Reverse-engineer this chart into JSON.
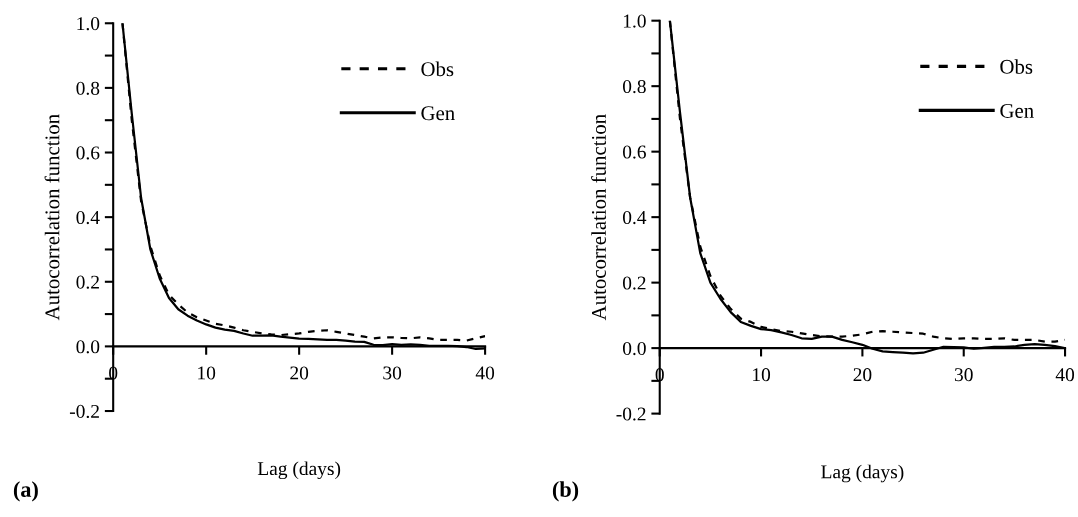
{
  "chart_data": [
    {
      "type": "line",
      "xlabel": "Lag (days)",
      "ylabel": "Autocorrelation function",
      "annotations": [
        "(a)"
      ],
      "legend": "top right",
      "grid": false,
      "x": [
        1,
        2,
        3,
        4,
        5,
        6,
        7,
        8,
        9,
        10,
        11,
        12,
        13,
        14,
        15,
        16,
        17,
        18,
        19,
        20,
        21,
        22,
        23,
        24,
        25,
        26,
        27,
        28,
        29,
        30,
        31,
        32,
        33,
        34,
        35,
        36,
        37,
        38,
        39,
        40
      ],
      "xlim": [
        0,
        40
      ],
      "xticks": [
        0,
        10,
        20,
        30,
        40
      ],
      "ylim": [
        -0.2,
        1.0
      ],
      "yticks": [
        {
          "value": -0.2,
          "label": "-0.2"
        },
        {
          "value": -0.1,
          "label": null
        },
        {
          "value": 0,
          "label": "0.0"
        },
        {
          "value": 0.1,
          "label": null
        },
        {
          "value": 0.2,
          "label": "0.2"
        },
        {
          "value": 0.3,
          "label": null
        },
        {
          "value": 0.4,
          "label": "0.4"
        },
        {
          "value": 0.5,
          "label": null
        },
        {
          "value": 0.6,
          "label": "0.6"
        },
        {
          "value": 0.7,
          "label": null
        },
        {
          "value": 0.8,
          "label": "0.8"
        },
        {
          "value": 0.9,
          "label": null
        },
        {
          "value": 1.0,
          "label": "1.0"
        }
      ],
      "series": [
        {
          "name": "Obs",
          "color": "#000000",
          "line_style": "dashed",
          "values": [
            1.0,
            0.7,
            0.45,
            0.31,
            0.22,
            0.16,
            0.13,
            0.105,
            0.09,
            0.08,
            0.07,
            0.065,
            0.058,
            0.05,
            0.045,
            0.04,
            0.037,
            0.035,
            0.038,
            0.04,
            0.045,
            0.048,
            0.05,
            0.045,
            0.04,
            0.035,
            0.03,
            0.025,
            0.028,
            0.028,
            0.026,
            0.025,
            0.028,
            0.025,
            0.02,
            0.02,
            0.02,
            0.018,
            0.025,
            0.032
          ]
        },
        {
          "name": "Gen",
          "color": "#000000",
          "line_style": "solid",
          "values": [
            1.0,
            0.72,
            0.46,
            0.3,
            0.21,
            0.15,
            0.115,
            0.095,
            0.08,
            0.068,
            0.058,
            0.052,
            0.048,
            0.04,
            0.033,
            0.033,
            0.034,
            0.03,
            0.027,
            0.024,
            0.023,
            0.022,
            0.02,
            0.02,
            0.018,
            0.015,
            0.014,
            0.005,
            0.004,
            0.007,
            0.005,
            0.006,
            0.005,
            0.002,
            0.002,
            0.002,
            0.001,
            -0.002,
            -0.008,
            -0.006
          ]
        }
      ]
    },
    {
      "type": "line",
      "xlabel": "Lag (days)",
      "ylabel": "Autocorrelation function",
      "annotations": [
        "(b)"
      ],
      "legend": "top right",
      "grid": false,
      "x": [
        1,
        2,
        3,
        4,
        5,
        6,
        7,
        8,
        9,
        10,
        11,
        12,
        13,
        14,
        15,
        16,
        17,
        18,
        19,
        20,
        21,
        22,
        23,
        24,
        25,
        26,
        27,
        28,
        29,
        30,
        31,
        32,
        33,
        34,
        35,
        36,
        37,
        38,
        39,
        40
      ],
      "xlim": [
        0,
        40
      ],
      "xticks": [
        0,
        10,
        20,
        30,
        40
      ],
      "ylim": [
        -0.2,
        1.0
      ],
      "yticks": [
        {
          "value": -0.2,
          "label": "-0.2"
        },
        {
          "value": -0.1,
          "label": null
        },
        {
          "value": 0,
          "label": "0.0"
        },
        {
          "value": 0.1,
          "label": null
        },
        {
          "value": 0.2,
          "label": "0.2"
        },
        {
          "value": 0.3,
          "label": null
        },
        {
          "value": 0.4,
          "label": "0.4"
        },
        {
          "value": 0.5,
          "label": null
        },
        {
          "value": 0.6,
          "label": "0.6"
        },
        {
          "value": 0.7,
          "label": null
        },
        {
          "value": 0.8,
          "label": "0.8"
        },
        {
          "value": 0.9,
          "label": null
        },
        {
          "value": 1.0,
          "label": "1.0"
        }
      ],
      "series": [
        {
          "name": "Obs",
          "color": "#000000",
          "line_style": "dashed",
          "values": [
            1.0,
            0.7,
            0.46,
            0.31,
            0.22,
            0.16,
            0.12,
            0.09,
            0.08,
            0.065,
            0.058,
            0.052,
            0.05,
            0.045,
            0.04,
            0.036,
            0.035,
            0.035,
            0.038,
            0.042,
            0.05,
            0.052,
            0.05,
            0.048,
            0.046,
            0.044,
            0.035,
            0.03,
            0.028,
            0.03,
            0.03,
            0.028,
            0.028,
            0.03,
            0.025,
            0.025,
            0.025,
            0.02,
            0.02,
            0.025
          ]
        },
        {
          "name": "Gen",
          "color": "#000000",
          "line_style": "solid",
          "values": [
            1.0,
            0.72,
            0.46,
            0.29,
            0.2,
            0.15,
            0.11,
            0.08,
            0.068,
            0.058,
            0.055,
            0.048,
            0.04,
            0.03,
            0.028,
            0.035,
            0.035,
            0.025,
            0.018,
            0.01,
            -0.002,
            -0.01,
            -0.012,
            -0.014,
            -0.016,
            -0.014,
            -0.005,
            0.004,
            0.003,
            0.002,
            -0.002,
            0.001,
            0.004,
            0.004,
            0.005,
            0.01,
            0.012,
            0.01,
            0.006,
            0.0
          ]
        }
      ]
    }
  ]
}
